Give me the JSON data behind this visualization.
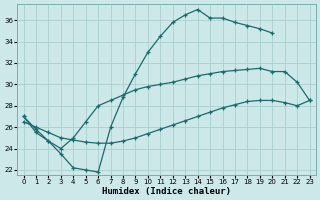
{
  "background_color": "#cce8e8",
  "grid_color": "#aacfcf",
  "line_color": "#1a6b6b",
  "xlabel": "Humidex (Indice chaleur)",
  "xlim": [
    -0.5,
    23.5
  ],
  "ylim": [
    21.5,
    37.5
  ],
  "xticks": [
    0,
    1,
    2,
    3,
    4,
    5,
    6,
    7,
    8,
    9,
    10,
    11,
    12,
    13,
    14,
    15,
    16,
    17,
    18,
    19,
    20,
    21,
    22,
    23
  ],
  "yticks": [
    22,
    24,
    26,
    28,
    30,
    32,
    34,
    36
  ],
  "curve_A_x": [
    0,
    1,
    2,
    3,
    4,
    5,
    6,
    7,
    8,
    9,
    10,
    11,
    12,
    13,
    14,
    15,
    16,
    17,
    18,
    19,
    20
  ],
  "curve_A_y": [
    27.0,
    25.8,
    24.7,
    23.5,
    22.2,
    22.0,
    21.8,
    26.0,
    28.8,
    31.0,
    33.0,
    34.5,
    35.8,
    36.5,
    37.0,
    36.2,
    36.2,
    35.8,
    35.5,
    35.2,
    34.8
  ],
  "curve_B_x": [
    0,
    1,
    2,
    3,
    4,
    5,
    6,
    7,
    8,
    9,
    10,
    11,
    12,
    13,
    14,
    15,
    16,
    17,
    18,
    19,
    20,
    21,
    22,
    23
  ],
  "curve_B_y": [
    26.5,
    26.0,
    25.5,
    25.0,
    24.8,
    24.6,
    24.5,
    24.5,
    24.7,
    25.0,
    25.4,
    25.8,
    26.2,
    26.6,
    27.0,
    27.4,
    27.8,
    28.1,
    28.4,
    28.5,
    28.5,
    28.3,
    28.0,
    28.5
  ],
  "curve_C_x": [
    0,
    1,
    2,
    3,
    4,
    5,
    6,
    7,
    8,
    9,
    10,
    11,
    12,
    13,
    14,
    15,
    16,
    17,
    18,
    19,
    20,
    21,
    22,
    23
  ],
  "curve_C_y": [
    27.0,
    25.5,
    24.7,
    24.0,
    25.0,
    26.5,
    28.0,
    28.5,
    29.0,
    29.5,
    29.8,
    30.0,
    30.2,
    30.5,
    30.8,
    31.0,
    31.2,
    31.3,
    31.4,
    31.5,
    31.2,
    31.2,
    30.2,
    28.5
  ]
}
